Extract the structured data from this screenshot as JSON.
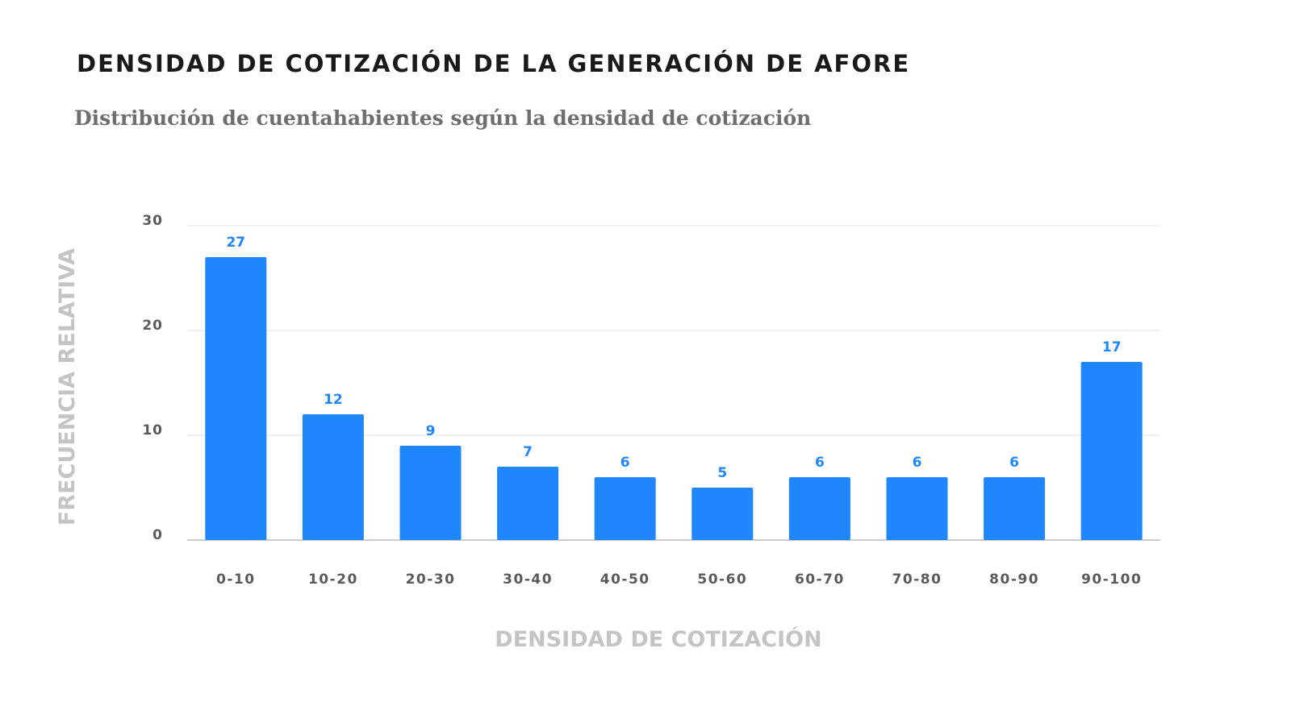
{
  "title": "DENSIDAD DE COTIZACIÓN DE LA GENERACIÓN DE AFORE",
  "subtitle": "Distribución de cuentahabientes según la densidad de cotización",
  "chart_data": {
    "type": "bar",
    "title": "DENSIDAD DE COTIZACIÓN DE LA GENERACIÓN DE AFORE",
    "subtitle": "Distribución de cuentahabientes según la densidad de cotización",
    "xlabel": "DENSIDAD DE COTIZACIÓN",
    "ylabel": "FRECUENCIA RELATIVA",
    "categories": [
      "0-10",
      "10-20",
      "20-30",
      "30-40",
      "40-50",
      "50-60",
      "60-70",
      "70-80",
      "80-90",
      "90-100"
    ],
    "values": [
      27,
      12,
      9,
      7,
      6,
      5,
      6,
      6,
      6,
      17
    ],
    "ylim": [
      0,
      30
    ],
    "yticks": [
      0,
      10,
      20,
      30
    ],
    "grid": true,
    "legend": "none",
    "bar_color": "#1f86fb",
    "label_color": "#1f86fb"
  }
}
